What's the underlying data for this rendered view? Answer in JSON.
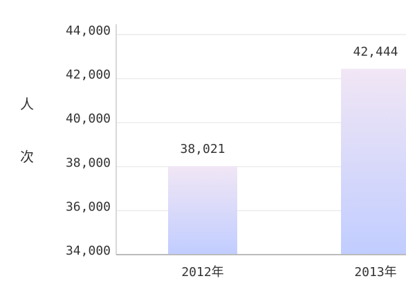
{
  "chart_data": {
    "type": "bar",
    "y_label": "人次",
    "categories": [
      "2012年",
      "2013年"
    ],
    "values": [
      38021,
      42444
    ],
    "value_labels": [
      "38,021",
      "42,444"
    ],
    "color": [
      "#f1e6f5",
      "#c1cdff"
    ],
    "ylim": [
      34000,
      44000
    ],
    "yticks": [
      {
        "value": 34000,
        "label": "34,000"
      },
      {
        "value": 36000,
        "label": "36,000"
      },
      {
        "value": 38000,
        "label": "38,000"
      },
      {
        "value": 40000,
        "label": "40,000"
      },
      {
        "value": 42000,
        "label": "42,000"
      },
      {
        "value": 44000,
        "label": "44,000"
      }
    ],
    "grid": true
  }
}
